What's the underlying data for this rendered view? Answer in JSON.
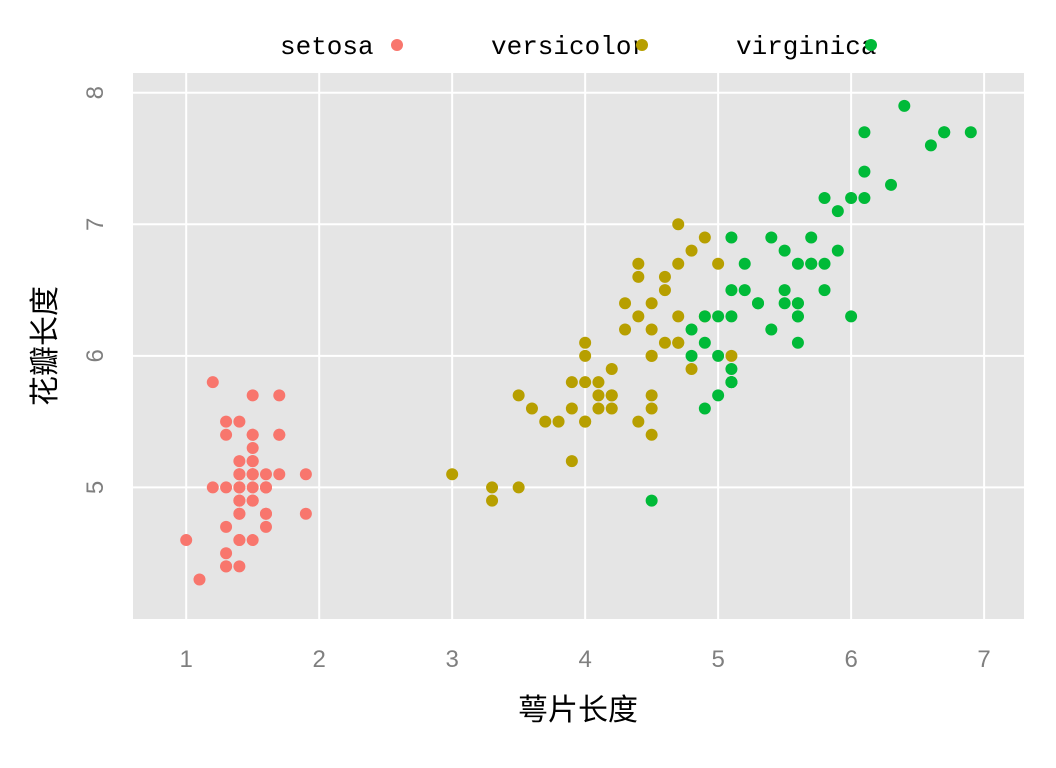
{
  "chart_data": {
    "type": "scatter",
    "xlabel": "萼片长度",
    "ylabel": "花瓣长度",
    "xlim": [
      0.6,
      7.3
    ],
    "ylim": [
      4.0,
      8.15
    ],
    "x_ticks": [
      1,
      2,
      3,
      4,
      5,
      6,
      7
    ],
    "y_ticks": [
      5,
      6,
      7,
      8
    ],
    "grid": true,
    "legend_position": "top",
    "series": [
      {
        "name": "setosa",
        "color": "#f8766d",
        "points": [
          [
            1.4,
            5.1
          ],
          [
            1.4,
            4.9
          ],
          [
            1.3,
            4.7
          ],
          [
            1.5,
            4.6
          ],
          [
            1.4,
            5.0
          ],
          [
            1.7,
            5.4
          ],
          [
            1.4,
            4.6
          ],
          [
            1.5,
            5.0
          ],
          [
            1.4,
            4.4
          ],
          [
            1.5,
            4.9
          ],
          [
            1.5,
            5.4
          ],
          [
            1.6,
            4.8
          ],
          [
            1.4,
            4.8
          ],
          [
            1.1,
            4.3
          ],
          [
            1.2,
            5.8
          ],
          [
            1.5,
            5.7
          ],
          [
            1.3,
            5.4
          ],
          [
            1.4,
            5.1
          ],
          [
            1.7,
            5.7
          ],
          [
            1.5,
            5.1
          ],
          [
            1.7,
            5.4
          ],
          [
            1.5,
            5.1
          ],
          [
            1.0,
            4.6
          ],
          [
            1.7,
            5.1
          ],
          [
            1.9,
            4.8
          ],
          [
            1.6,
            5.0
          ],
          [
            1.6,
            5.0
          ],
          [
            1.5,
            5.2
          ],
          [
            1.4,
            5.2
          ],
          [
            1.6,
            4.7
          ],
          [
            1.6,
            4.8
          ],
          [
            1.5,
            5.4
          ],
          [
            1.5,
            5.2
          ],
          [
            1.4,
            5.5
          ],
          [
            1.5,
            4.9
          ],
          [
            1.2,
            5.0
          ],
          [
            1.3,
            5.5
          ],
          [
            1.4,
            4.9
          ],
          [
            1.3,
            4.4
          ],
          [
            1.5,
            5.1
          ],
          [
            1.3,
            5.0
          ],
          [
            1.3,
            4.5
          ],
          [
            1.3,
            4.4
          ],
          [
            1.6,
            5.0
          ],
          [
            1.9,
            5.1
          ],
          [
            1.4,
            4.8
          ],
          [
            1.6,
            5.1
          ],
          [
            1.4,
            4.6
          ],
          [
            1.5,
            5.3
          ],
          [
            1.4,
            5.0
          ]
        ]
      },
      {
        "name": "versicolor",
        "color": "#b79f00",
        "points": [
          [
            4.7,
            7.0
          ],
          [
            4.5,
            6.4
          ],
          [
            4.9,
            6.9
          ],
          [
            4.0,
            5.5
          ],
          [
            4.6,
            6.5
          ],
          [
            4.5,
            5.7
          ],
          [
            4.7,
            6.3
          ],
          [
            3.3,
            4.9
          ],
          [
            4.6,
            6.6
          ],
          [
            3.9,
            5.2
          ],
          [
            3.5,
            5.0
          ],
          [
            4.2,
            5.9
          ],
          [
            4.0,
            6.0
          ],
          [
            4.7,
            6.1
          ],
          [
            3.6,
            5.6
          ],
          [
            4.4,
            6.7
          ],
          [
            4.5,
            5.6
          ],
          [
            4.1,
            5.8
          ],
          [
            4.5,
            6.2
          ],
          [
            3.9,
            5.6
          ],
          [
            4.8,
            5.9
          ],
          [
            4.0,
            6.1
          ],
          [
            4.9,
            6.3
          ],
          [
            4.7,
            6.1
          ],
          [
            4.3,
            6.4
          ],
          [
            4.4,
            6.6
          ],
          [
            4.8,
            6.8
          ],
          [
            5.0,
            6.7
          ],
          [
            4.5,
            6.0
          ],
          [
            3.5,
            5.7
          ],
          [
            3.8,
            5.5
          ],
          [
            3.7,
            5.5
          ],
          [
            3.9,
            5.8
          ],
          [
            5.1,
            6.0
          ],
          [
            4.5,
            5.4
          ],
          [
            4.5,
            6.0
          ],
          [
            4.7,
            6.7
          ],
          [
            4.4,
            6.3
          ],
          [
            4.1,
            5.6
          ],
          [
            4.0,
            5.5
          ],
          [
            4.4,
            5.5
          ],
          [
            4.6,
            6.1
          ],
          [
            4.0,
            5.8
          ],
          [
            3.3,
            5.0
          ],
          [
            4.2,
            5.6
          ],
          [
            4.2,
            5.7
          ],
          [
            4.2,
            5.7
          ],
          [
            4.3,
            6.2
          ],
          [
            3.0,
            5.1
          ],
          [
            4.1,
            5.7
          ]
        ]
      },
      {
        "name": "virginica",
        "color": "#00ba38",
        "points": [
          [
            6.0,
            6.3
          ],
          [
            5.1,
            5.8
          ],
          [
            5.9,
            7.1
          ],
          [
            5.6,
            6.3
          ],
          [
            5.8,
            6.5
          ],
          [
            6.6,
            7.6
          ],
          [
            4.5,
            4.9
          ],
          [
            6.3,
            7.3
          ],
          [
            5.8,
            6.7
          ],
          [
            6.1,
            7.2
          ],
          [
            5.1,
            6.5
          ],
          [
            5.3,
            6.4
          ],
          [
            5.5,
            6.8
          ],
          [
            5.0,
            5.7
          ],
          [
            5.1,
            5.8
          ],
          [
            5.3,
            6.4
          ],
          [
            5.5,
            6.5
          ],
          [
            6.7,
            7.7
          ],
          [
            6.9,
            7.7
          ],
          [
            5.0,
            6.0
          ],
          [
            5.7,
            6.9
          ],
          [
            4.9,
            5.6
          ],
          [
            6.7,
            7.7
          ],
          [
            4.9,
            6.3
          ],
          [
            5.7,
            6.7
          ],
          [
            6.0,
            7.2
          ],
          [
            4.8,
            6.2
          ],
          [
            4.9,
            6.1
          ],
          [
            5.6,
            6.4
          ],
          [
            5.8,
            7.2
          ],
          [
            6.1,
            7.4
          ],
          [
            6.4,
            7.9
          ],
          [
            5.6,
            6.4
          ],
          [
            5.1,
            6.3
          ],
          [
            5.6,
            6.1
          ],
          [
            6.1,
            7.7
          ],
          [
            5.6,
            6.3
          ],
          [
            5.5,
            6.4
          ],
          [
            4.8,
            6.0
          ],
          [
            5.4,
            6.9
          ],
          [
            5.6,
            6.7
          ],
          [
            5.1,
            6.9
          ],
          [
            5.1,
            5.8
          ],
          [
            5.9,
            6.8
          ],
          [
            5.7,
            6.7
          ],
          [
            5.2,
            6.7
          ],
          [
            5.0,
            6.3
          ],
          [
            5.2,
            6.5
          ],
          [
            5.4,
            6.2
          ],
          [
            5.1,
            5.9
          ]
        ]
      }
    ]
  }
}
